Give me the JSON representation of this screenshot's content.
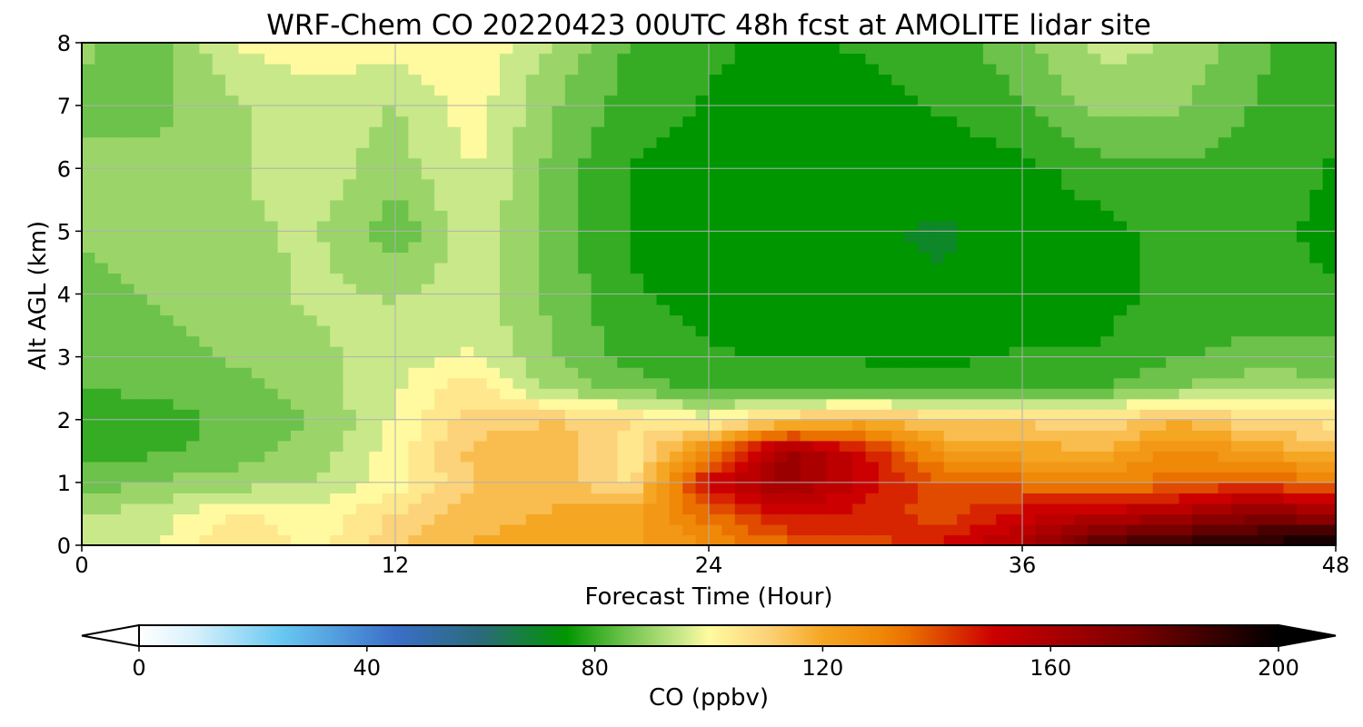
{
  "chart_data": {
    "type": "heatmap",
    "title": "WRF-Chem CO  20220423 00UTC 48h fcst at AMOLITE lidar site",
    "xlabel": "Forecast Time (Hour)",
    "ylabel": "Alt AGL (km)",
    "xlim": [
      0,
      48
    ],
    "ylim": [
      0,
      8
    ],
    "xticks": [
      "0",
      "12",
      "24",
      "36",
      "48"
    ],
    "yticks": [
      "0",
      "1",
      "2",
      "3",
      "4",
      "5",
      "6",
      "7",
      "8"
    ],
    "grid": true,
    "colorbar": {
      "label": "CO  (ppbv)",
      "ticks": [
        "0",
        "40",
        "80",
        "120",
        "160",
        "200"
      ],
      "range": [
        0,
        200
      ],
      "extend": "both",
      "stops": [
        {
          "v": 0,
          "c": "#ffffff"
        },
        {
          "v": 10,
          "c": "#d6f0fb"
        },
        {
          "v": 25,
          "c": "#68c8f2"
        },
        {
          "v": 45,
          "c": "#3b6fc8"
        },
        {
          "v": 60,
          "c": "#2a6a7a"
        },
        {
          "v": 75,
          "c": "#009600"
        },
        {
          "v": 85,
          "c": "#6cc24a"
        },
        {
          "v": 95,
          "c": "#c9e88a"
        },
        {
          "v": 100,
          "c": "#fffaa0"
        },
        {
          "v": 110,
          "c": "#fcd37a"
        },
        {
          "v": 120,
          "c": "#f5a623"
        },
        {
          "v": 133,
          "c": "#ee7f00"
        },
        {
          "v": 150,
          "c": "#cc0000"
        },
        {
          "v": 175,
          "c": "#7a0000"
        },
        {
          "v": 200,
          "c": "#000000"
        }
      ]
    },
    "x_hours": [
      0,
      3,
      6,
      9,
      12,
      15,
      18,
      21,
      24,
      27,
      30,
      33,
      36,
      39,
      42,
      45,
      48
    ],
    "y_km": [
      0,
      0.5,
      1,
      1.5,
      2,
      2.5,
      3,
      4,
      5,
      6,
      7,
      8
    ],
    "co_ppbv": [
      [
        95,
        98,
        108,
        100,
        112,
        118,
        120,
        122,
        128,
        135,
        140,
        148,
        160,
        185,
        192,
        196,
        200
      ],
      [
        92,
        95,
        104,
        98,
        108,
        115,
        118,
        120,
        135,
        150,
        145,
        140,
        150,
        155,
        160,
        170,
        165
      ],
      [
        85,
        88,
        90,
        93,
        100,
        112,
        116,
        105,
        150,
        165,
        150,
        138,
        135,
        130,
        135,
        140,
        132
      ],
      [
        80,
        82,
        85,
        90,
        100,
        114,
        118,
        104,
        130,
        165,
        148,
        125,
        120,
        118,
        130,
        122,
        115
      ],
      [
        78,
        80,
        84,
        88,
        98,
        110,
        112,
        108,
        100,
        112,
        118,
        110,
        112,
        108,
        116,
        108,
        105
      ],
      [
        82,
        84,
        86,
        90,
        97,
        106,
        90,
        86,
        80,
        80,
        80,
        80,
        82,
        82,
        88,
        92,
        90
      ],
      [
        85,
        86,
        88,
        91,
        96,
        98,
        88,
        80,
        78,
        77,
        77,
        76,
        78,
        78,
        82,
        84,
        84
      ],
      [
        86,
        88,
        90,
        94,
        92,
        95,
        86,
        78,
        76,
        74,
        73,
        73,
        74,
        76,
        79,
        80,
        78
      ],
      [
        88,
        90,
        92,
        93,
        84,
        96,
        86,
        77,
        75,
        73,
        73,
        72,
        74,
        76,
        79,
        79,
        76
      ],
      [
        88,
        89,
        92,
        95,
        90,
        98,
        86,
        77,
        76,
        74,
        74,
        74,
        76,
        80,
        82,
        80,
        77
      ],
      [
        87,
        86,
        92,
        96,
        92,
        100,
        88,
        80,
        77,
        76,
        76,
        78,
        82,
        90,
        88,
        82,
        78
      ],
      [
        88,
        86,
        98,
        100,
        100,
        102,
        92,
        82,
        78,
        77,
        78,
        80,
        86,
        94,
        92,
        84,
        78
      ]
    ]
  }
}
